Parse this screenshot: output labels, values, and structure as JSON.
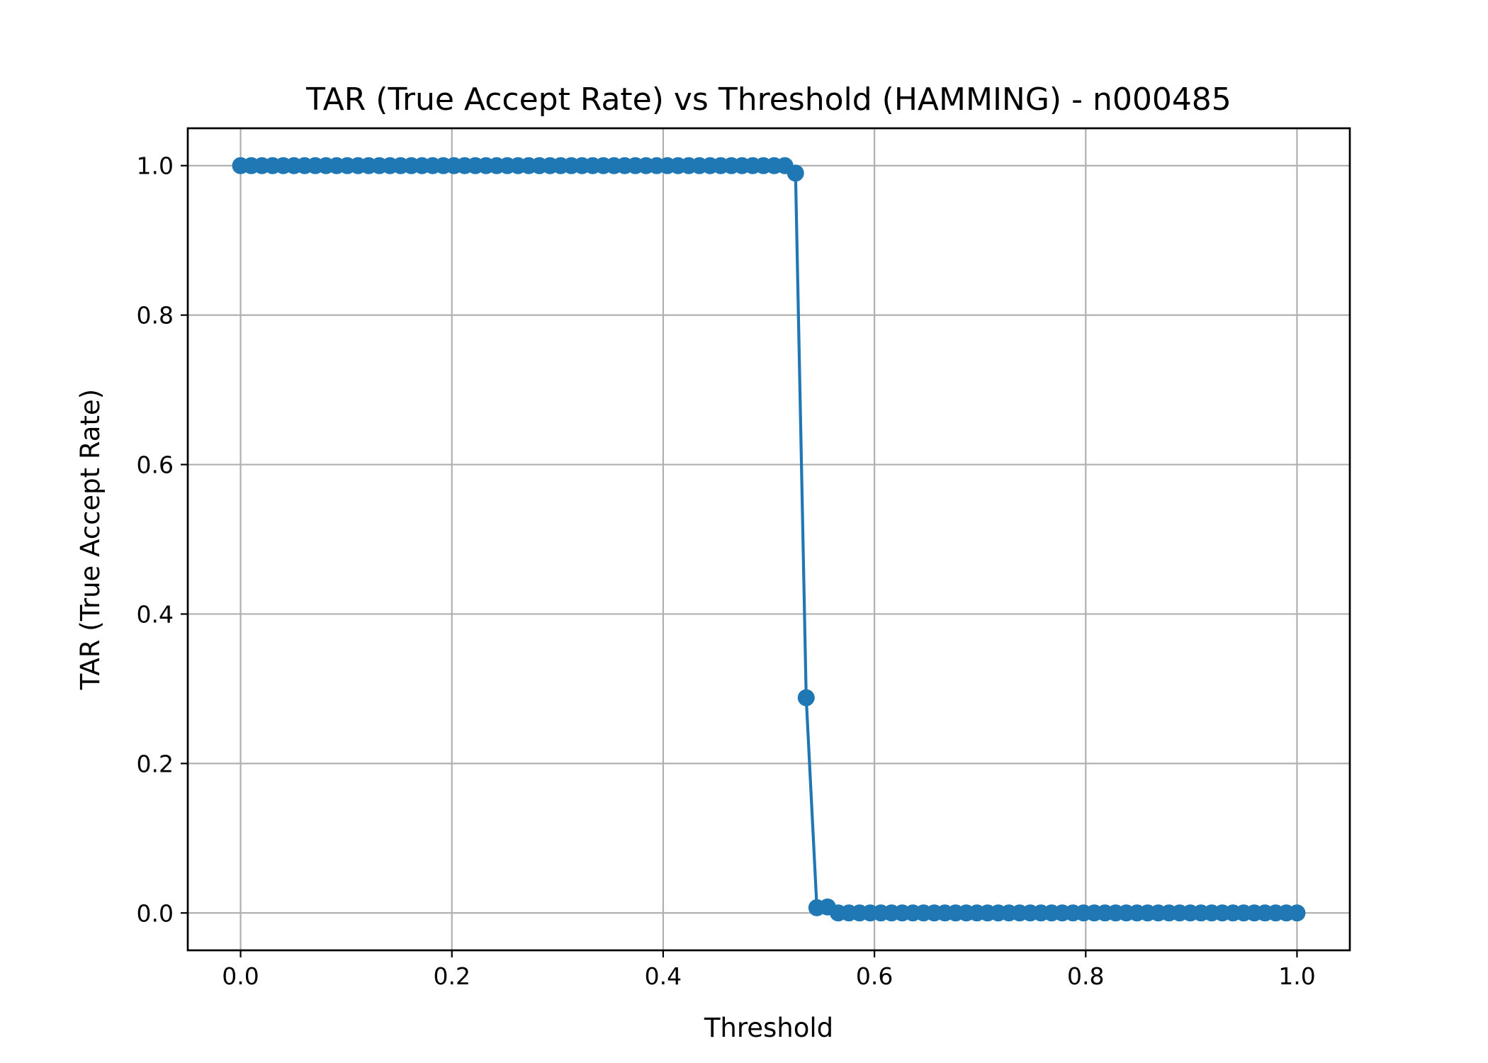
{
  "chart_data": {
    "type": "line",
    "title": "TAR (True Accept Rate) vs Threshold (HAMMING) - n000485",
    "xlabel": "Threshold",
    "ylabel": "TAR (True Accept Rate)",
    "xlim": [
      -0.05,
      1.05
    ],
    "ylim": [
      -0.05,
      1.05
    ],
    "xticks": [
      "0.0",
      "0.2",
      "0.4",
      "0.6",
      "0.8",
      "1.0"
    ],
    "yticks": [
      "0.0",
      "0.2",
      "0.4",
      "0.6",
      "0.8",
      "1.0"
    ],
    "grid": true,
    "legend": false,
    "color": "#1f77b4",
    "series": [
      {
        "marker": "circle",
        "x": [
          0.0,
          0.0101,
          0.0202,
          0.0303,
          0.0404,
          0.0505,
          0.0606,
          0.0707,
          0.0808,
          0.0909,
          0.101,
          0.1111,
          0.1212,
          0.1313,
          0.1414,
          0.1515,
          0.1616,
          0.1717,
          0.1818,
          0.1919,
          0.202,
          0.2121,
          0.2222,
          0.2323,
          0.2424,
          0.2525,
          0.2626,
          0.2727,
          0.2828,
          0.2929,
          0.303,
          0.3131,
          0.3232,
          0.3333,
          0.3434,
          0.3535,
          0.3636,
          0.3737,
          0.3838,
          0.3939,
          0.404,
          0.4141,
          0.4242,
          0.4343,
          0.4444,
          0.4545,
          0.4646,
          0.4747,
          0.4848,
          0.4949,
          0.5051,
          0.5152,
          0.5253,
          0.5354,
          0.5455,
          0.5556,
          0.5657,
          0.5758,
          0.5859,
          0.596,
          0.6061,
          0.6162,
          0.6263,
          0.6364,
          0.6465,
          0.6566,
          0.6667,
          0.6768,
          0.6869,
          0.697,
          0.7071,
          0.7172,
          0.7273,
          0.7374,
          0.7475,
          0.7576,
          0.7677,
          0.7778,
          0.7879,
          0.798,
          0.8081,
          0.8182,
          0.8283,
          0.8384,
          0.8485,
          0.8586,
          0.8687,
          0.8788,
          0.8889,
          0.899,
          0.9091,
          0.9192,
          0.9293,
          0.9394,
          0.9495,
          0.9596,
          0.9697,
          0.9798,
          0.9899,
          1.0
        ],
        "y": [
          1,
          1,
          1,
          1,
          1,
          1,
          1,
          1,
          1,
          1,
          1,
          1,
          1,
          1,
          1,
          1,
          1,
          1,
          1,
          1,
          1,
          1,
          1,
          1,
          1,
          1,
          1,
          1,
          1,
          1,
          1,
          1,
          1,
          1,
          1,
          1,
          1,
          1,
          1,
          1,
          1,
          1,
          1,
          1,
          1,
          1,
          1,
          1,
          1,
          1,
          1,
          1,
          0.99,
          0.288,
          0.007,
          0.008,
          0,
          0,
          0,
          0,
          0,
          0,
          0,
          0,
          0,
          0,
          0,
          0,
          0,
          0,
          0,
          0,
          0,
          0,
          0,
          0,
          0,
          0,
          0,
          0,
          0,
          0,
          0,
          0,
          0,
          0,
          0,
          0,
          0,
          0,
          0,
          0,
          0,
          0,
          0,
          0,
          0,
          0,
          0,
          0
        ]
      }
    ]
  }
}
